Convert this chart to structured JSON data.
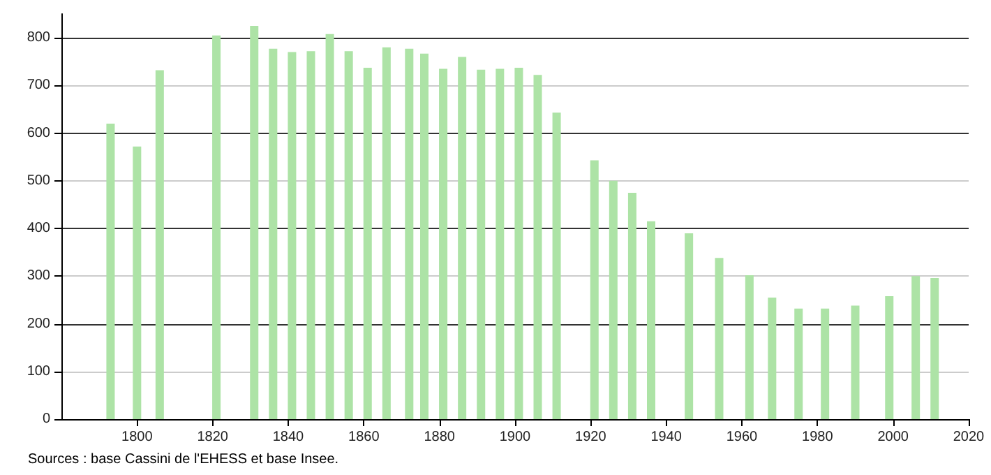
{
  "chart_data": {
    "type": "bar",
    "x": [
      1793,
      1800,
      1806,
      1821,
      1831,
      1836,
      1841,
      1846,
      1851,
      1856,
      1861,
      1866,
      1872,
      1876,
      1881,
      1886,
      1891,
      1896,
      1901,
      1906,
      1911,
      1921,
      1926,
      1931,
      1936,
      1946,
      1954,
      1962,
      1968,
      1975,
      1982,
      1990,
      1999,
      2006,
      2011
    ],
    "values": [
      620,
      572,
      732,
      805,
      825,
      777,
      770,
      772,
      808,
      772,
      737,
      780,
      777,
      767,
      735,
      760,
      733,
      735,
      737,
      722,
      643,
      543,
      500,
      475,
      415,
      390,
      338,
      302,
      255,
      232,
      232,
      238,
      258,
      300,
      296
    ],
    "color": "#ade3a6",
    "xlim": [
      1780,
      2020
    ],
    "xticks": [
      1800,
      1820,
      1840,
      1860,
      1880,
      1900,
      1920,
      1940,
      1960,
      1980,
      2000,
      2020
    ],
    "ylim": [
      0,
      850
    ],
    "yticks": [
      0,
      100,
      200,
      300,
      400,
      500,
      600,
      700,
      800
    ],
    "grid": "y",
    "annotations": [
      "Sources : base Cassini de l'EHESS et base Insee."
    ]
  }
}
